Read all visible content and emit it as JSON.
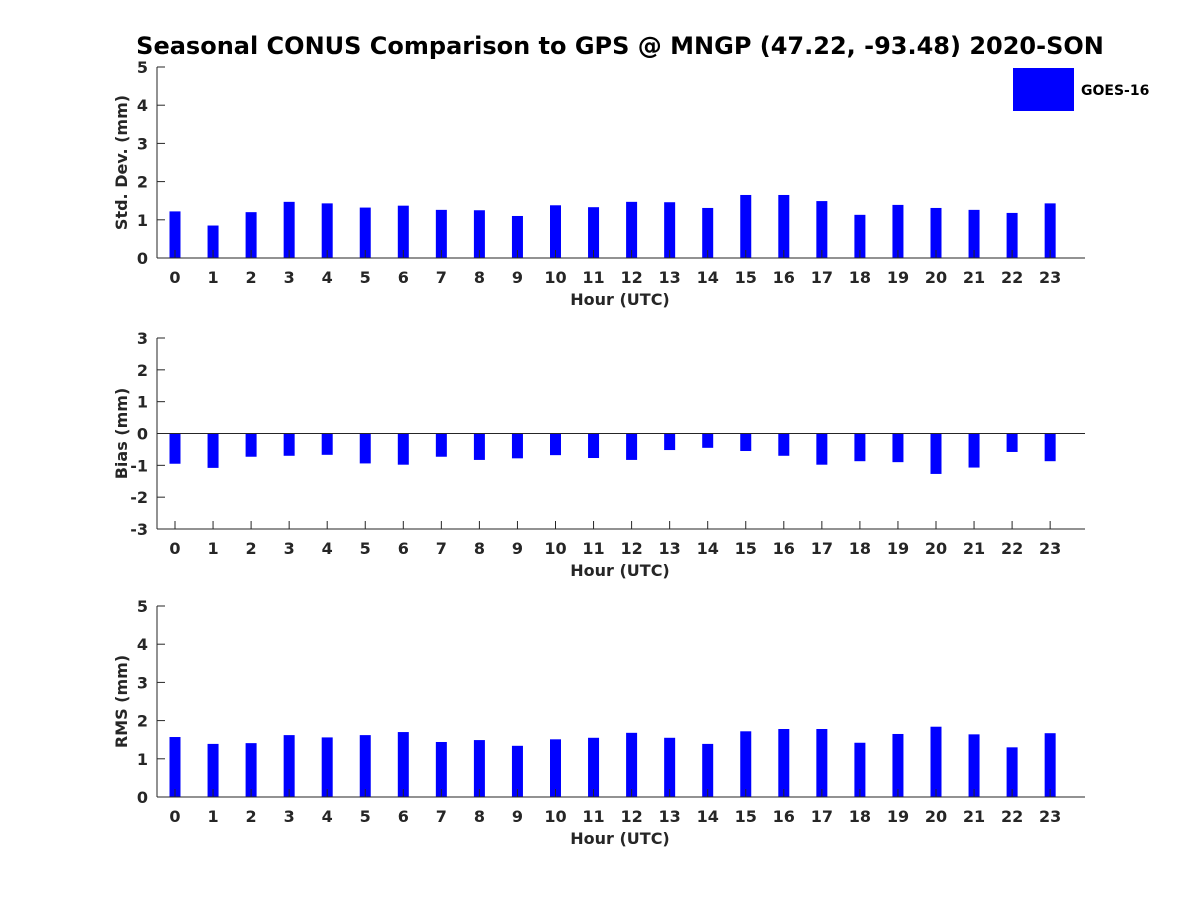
{
  "figure": {
    "title": "Seasonal CONUS Comparison to GPS @ MNGP (47.22, -93.48) 2020-SON"
  },
  "legend": {
    "label": "GOES-16",
    "color": "#0000ff",
    "placement": "top-right"
  },
  "chart_data": [
    {
      "type": "bar",
      "ylabel": "Std. Dev. (mm)",
      "xlabel": "Hour (UTC)",
      "ylim": [
        0,
        5
      ],
      "yticks": [
        "0",
        "1",
        "2",
        "3",
        "4",
        "5"
      ],
      "categories": [
        "0",
        "1",
        "2",
        "3",
        "4",
        "5",
        "6",
        "7",
        "8",
        "9",
        "10",
        "11",
        "12",
        "13",
        "14",
        "15",
        "16",
        "17",
        "18",
        "19",
        "20",
        "21",
        "22",
        "23"
      ],
      "series": [
        {
          "name": "GOES-16",
          "values": [
            1.22,
            0.85,
            1.2,
            1.47,
            1.43,
            1.32,
            1.37,
            1.26,
            1.25,
            1.1,
            1.38,
            1.33,
            1.47,
            1.46,
            1.31,
            1.65,
            1.65,
            1.49,
            1.13,
            1.39,
            1.31,
            1.26,
            1.18,
            1.43
          ]
        }
      ],
      "grid": false
    },
    {
      "type": "bar",
      "ylabel": "Bias (mm)",
      "xlabel": "Hour (UTC)",
      "ylim": [
        -3,
        3
      ],
      "yticks": [
        "-3",
        "-2",
        "-1",
        "0",
        "1",
        "2",
        "3"
      ],
      "categories": [
        "0",
        "1",
        "2",
        "3",
        "4",
        "5",
        "6",
        "7",
        "8",
        "9",
        "10",
        "11",
        "12",
        "13",
        "14",
        "15",
        "16",
        "17",
        "18",
        "19",
        "20",
        "21",
        "22",
        "23"
      ],
      "series": [
        {
          "name": "GOES-16",
          "values": [
            -0.95,
            -1.08,
            -0.73,
            -0.7,
            -0.67,
            -0.94,
            -0.98,
            -0.73,
            -0.83,
            -0.78,
            -0.68,
            -0.77,
            -0.83,
            -0.52,
            -0.45,
            -0.55,
            -0.7,
            -0.98,
            -0.87,
            -0.9,
            -1.27,
            -1.07,
            -0.58,
            -0.87
          ]
        }
      ],
      "grid": false
    },
    {
      "type": "bar",
      "ylabel": "RMS (mm)",
      "xlabel": "Hour (UTC)",
      "ylim": [
        0,
        5
      ],
      "yticks": [
        "0",
        "1",
        "2",
        "3",
        "4",
        "5"
      ],
      "categories": [
        "0",
        "1",
        "2",
        "3",
        "4",
        "5",
        "6",
        "7",
        "8",
        "9",
        "10",
        "11",
        "12",
        "13",
        "14",
        "15",
        "16",
        "17",
        "18",
        "19",
        "20",
        "21",
        "22",
        "23"
      ],
      "series": [
        {
          "name": "GOES-16",
          "values": [
            1.57,
            1.39,
            1.41,
            1.62,
            1.56,
            1.62,
            1.7,
            1.44,
            1.49,
            1.34,
            1.51,
            1.55,
            1.68,
            1.55,
            1.39,
            1.72,
            1.78,
            1.78,
            1.42,
            1.65,
            1.84,
            1.64,
            1.3,
            1.67
          ]
        }
      ],
      "grid": false
    }
  ]
}
